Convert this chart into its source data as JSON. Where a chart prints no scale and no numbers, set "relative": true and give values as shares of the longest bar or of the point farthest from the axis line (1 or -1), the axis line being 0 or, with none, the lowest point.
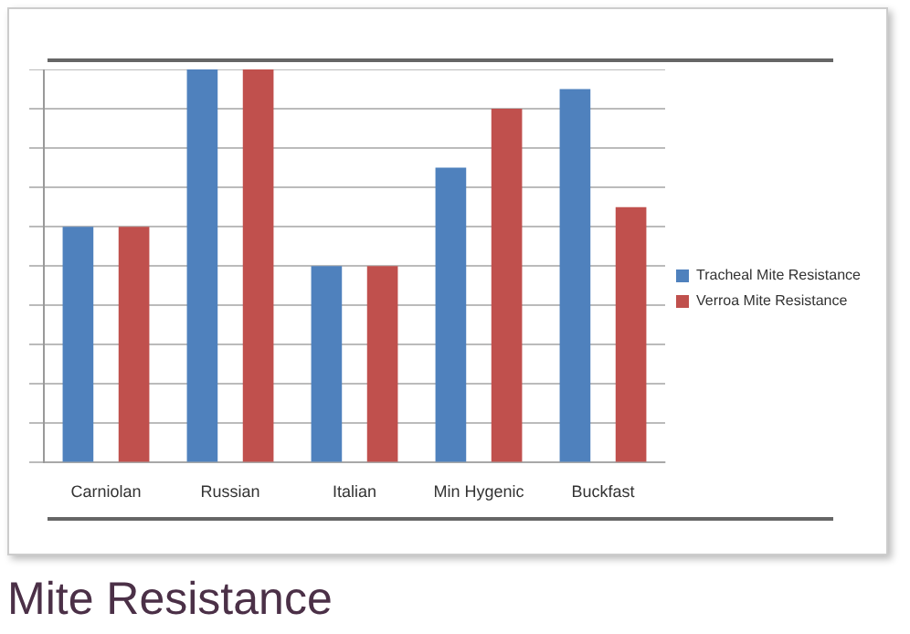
{
  "chart_data": {
    "type": "bar",
    "title": "Mite Resistance",
    "relative": true,
    "grid": "y",
    "legend": "right",
    "categories": [
      "Carniolan",
      "Russian",
      "Italian",
      "Min Hygenic",
      "Buckfast"
    ],
    "series": [
      {
        "name": "Tracheal Mite Resistance",
        "color": "#4f81bd",
        "values": [
          0.6,
          1,
          0.5,
          0.75,
          0.95
        ]
      },
      {
        "name": "Verroa Mite Resistance",
        "color": "#c0504d",
        "values": [
          0.6,
          1,
          0.5,
          0.9,
          0.65
        ]
      }
    ]
  }
}
